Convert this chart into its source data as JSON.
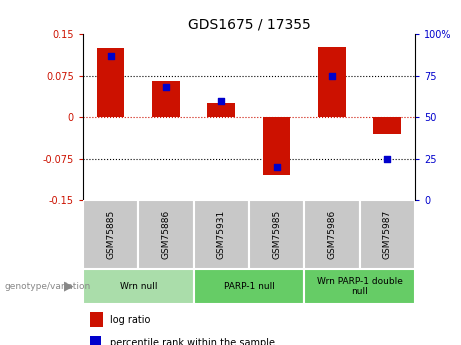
{
  "title": "GDS1675 / 17355",
  "samples": [
    "GSM75885",
    "GSM75886",
    "GSM75931",
    "GSM75985",
    "GSM75986",
    "GSM75987"
  ],
  "log_ratio": [
    0.125,
    0.065,
    0.025,
    -0.105,
    0.127,
    -0.03
  ],
  "percentile_rank": [
    87,
    68,
    60,
    20,
    75,
    25
  ],
  "ylim_left": [
    -0.15,
    0.15
  ],
  "ylim_right": [
    0,
    100
  ],
  "yticks_left": [
    -0.15,
    -0.075,
    0,
    0.075,
    0.15
  ],
  "ytick_labels_left": [
    "-0.15",
    "-0.075",
    "0",
    "0.075",
    "0.15"
  ],
  "yticks_right": [
    0,
    25,
    50,
    75,
    100
  ],
  "ytick_labels_right": [
    "0",
    "25",
    "50",
    "75",
    "100%"
  ],
  "groups": [
    {
      "label": "Wrn null",
      "indices": [
        0,
        1
      ],
      "color": "#aaddaa"
    },
    {
      "label": "PARP-1 null",
      "indices": [
        2,
        3
      ],
      "color": "#66cc66"
    },
    {
      "label": "Wrn PARP-1 double\nnull",
      "indices": [
        4,
        5
      ],
      "color": "#66cc66"
    }
  ],
  "bar_color": "#cc1100",
  "dot_color": "#0000cc",
  "bar_width": 0.5,
  "dot_size": 25,
  "sample_box_color": "#c8c8c8",
  "genotype_label": "genotype/variation",
  "legend_log_ratio": "log ratio",
  "legend_percentile": "percentile rank within the sample"
}
